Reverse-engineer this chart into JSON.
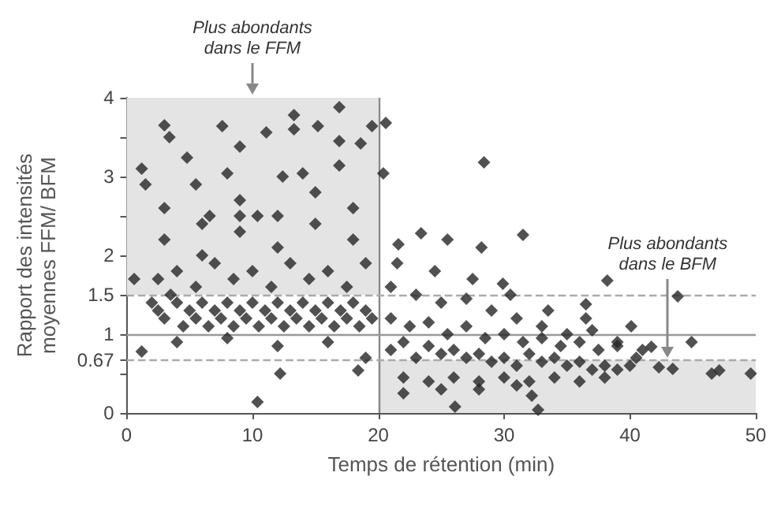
{
  "chart_data": {
    "type": "scatter",
    "xlabel": "Temps de rétention (min)",
    "ylabel": "Rapport des intensités\nmoyennes FFM/ BFM",
    "xlim": [
      0,
      50
    ],
    "xticks": [
      0,
      10,
      20,
      30,
      40,
      50
    ],
    "ylim": [
      0,
      4
    ],
    "yticks": [
      0,
      {
        "value": 0.5,
        "label": null
      },
      0.67,
      1,
      1.5,
      2,
      {
        "value": 2.5,
        "label": null
      },
      3,
      {
        "value": 3.5,
        "label": null
      },
      4
    ],
    "grid": false,
    "marker": "diamond",
    "ref_lines": [
      {
        "axis": "x",
        "value": 20,
        "color": "#888888",
        "line_style": "solid"
      },
      {
        "axis": "y",
        "value": 1,
        "color": "#999999",
        "line_style": "solid"
      },
      {
        "axis": "y",
        "value": 1.5,
        "color": "#aaaaaa",
        "line_style": "dashed"
      },
      {
        "axis": "y",
        "value": 0.67,
        "color": "#aaaaaa",
        "line_style": "dashed"
      }
    ],
    "bands": [
      {
        "axis": "y",
        "from": 1.5,
        "to": 4,
        "color": "#e4e4e4"
      },
      {
        "axis": "y",
        "from": 0,
        "to": 0.67,
        "color": "#e4e4e4"
      }
    ],
    "annotations": [
      {
        "text": "Plus abondants\ndans le FFM",
        "x": 10,
        "y": 4
      },
      {
        "text": "Plus abondants\ndans le BFM",
        "x": 43,
        "y": 0.67
      }
    ],
    "series": [
      {
        "color": "#262626",
        "x": [
          1.2,
          1.2,
          3.0,
          3.4,
          4.8,
          7.6,
          9.0,
          10.4,
          11.1,
          13.3,
          13.3,
          15.2,
          16.9,
          16.9,
          16.9,
          18.6,
          19.5,
          10.4,
          12.2,
          18.4,
          5.5,
          8.0,
          12.4,
          14.0,
          6.6,
          9.0,
          0.6,
          1.5,
          2,
          2.5,
          3,
          3.5,
          4,
          4.5,
          5,
          5.5,
          6,
          6.5,
          7,
          7.5,
          8,
          8.5,
          9,
          9.5,
          10,
          10.5,
          11,
          11.5,
          12,
          12.5,
          13,
          13.5,
          14,
          14.5,
          15,
          15.5,
          16,
          16.5,
          17,
          17.5,
          18,
          18.5,
          19,
          19.5,
          2.5,
          4,
          5.5,
          7,
          8.5,
          10,
          11.5,
          13,
          14.5,
          16,
          17.5,
          19,
          3,
          6,
          9,
          12,
          15,
          18,
          3,
          6,
          9,
          12,
          15,
          18,
          4,
          8,
          12,
          16,
          19,
          20.6,
          20.4,
          28.4,
          31.5,
          38.2,
          43.8,
          44.9,
          36.5,
          40.1,
          49.6,
          47.1,
          46.5,
          32.7,
          26.1,
          32.2,
          23.4,
          25.5,
          28.2,
          21.6,
          29.9,
          41.7,
          42.3,
          43.4,
          21,
          22,
          23,
          24,
          25,
          26,
          27,
          28,
          29,
          30,
          31,
          32,
          33,
          34,
          35,
          36,
          37,
          38,
          39,
          40,
          21,
          22.5,
          24,
          25.5,
          27,
          28.5,
          30,
          31.5,
          33,
          34.5,
          36,
          37.5,
          39,
          40.5,
          21,
          23,
          25,
          27,
          29,
          31,
          33,
          35,
          37,
          39,
          41,
          22,
          24,
          26,
          28,
          30,
          32,
          34,
          36,
          38,
          21.5,
          24.5,
          27.5,
          30.5,
          33.5,
          36.5,
          22,
          25,
          28,
          31
        ],
        "values": [
          0.78,
          3.1,
          3.65,
          3.5,
          3.24,
          3.64,
          3.38,
          2.5,
          3.56,
          3.78,
          3.6,
          3.64,
          3.88,
          3.45,
          3.14,
          3.42,
          3.64,
          0.14,
          0.5,
          0.54,
          2.9,
          3.04,
          3.0,
          3.04,
          2.5,
          2.5,
          1.7,
          2.9,
          1.4,
          1.3,
          1.2,
          1.5,
          1.4,
          1.1,
          1.3,
          1.2,
          1.4,
          1.1,
          1.3,
          1.2,
          1.4,
          1.1,
          1.3,
          1.2,
          1.4,
          1.1,
          1.3,
          1.2,
          1.4,
          1.1,
          1.3,
          1.2,
          1.4,
          1.1,
          1.3,
          1.2,
          1.4,
          1.1,
          1.3,
          1.2,
          1.4,
          1.1,
          1.3,
          1.2,
          1.7,
          1.8,
          1.6,
          1.9,
          1.7,
          1.8,
          1.6,
          1.9,
          1.7,
          1.8,
          1.6,
          1.9,
          2.2,
          2.0,
          2.3,
          2.1,
          2.4,
          2.2,
          2.6,
          2.4,
          2.7,
          2.5,
          2.8,
          2.6,
          0.9,
          0.95,
          0.85,
          0.9,
          0.7,
          3.68,
          3.04,
          3.18,
          2.26,
          1.68,
          1.48,
          0.9,
          1.38,
          1.1,
          0.5,
          0.54,
          0.5,
          0.04,
          0.08,
          0.22,
          2.28,
          2.2,
          2.1,
          2.14,
          1.64,
          0.84,
          0.58,
          0.56,
          0.8,
          0.9,
          0.7,
          0.85,
          0.75,
          0.8,
          0.7,
          0.75,
          0.65,
          0.7,
          0.6,
          0.75,
          0.65,
          0.7,
          0.6,
          0.65,
          0.55,
          0.6,
          0.55,
          0.6,
          1.2,
          1.1,
          1.15,
          1.0,
          1.1,
          0.95,
          1.0,
          0.9,
          0.95,
          0.85,
          0.9,
          0.8,
          0.85,
          0.7,
          1.6,
          1.5,
          1.4,
          1.45,
          1.3,
          1.2,
          1.1,
          1.0,
          1.05,
          0.9,
          0.8,
          0.45,
          0.4,
          0.45,
          0.4,
          0.45,
          0.4,
          0.45,
          0.4,
          0.45,
          1.9,
          1.8,
          1.7,
          1.5,
          1.3,
          1.2,
          0.25,
          0.3,
          0.3,
          0.35
        ]
      }
    ]
  }
}
